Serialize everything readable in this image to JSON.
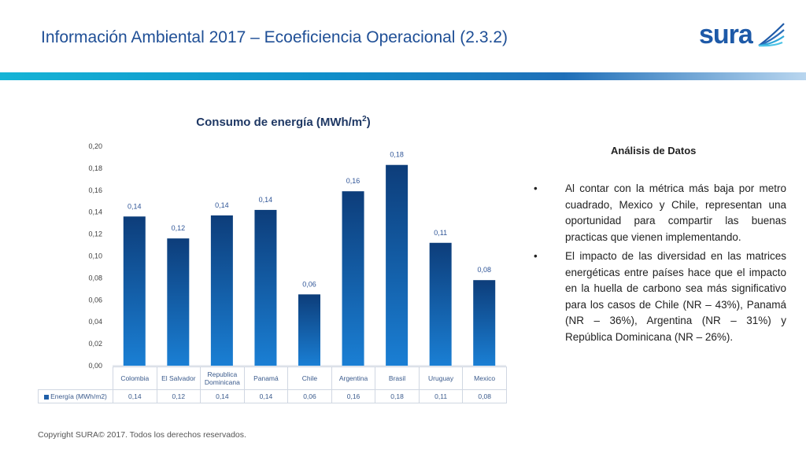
{
  "slide": {
    "title": "Información Ambiental 2017 – Ecoeficiencia Operacional (2.3.2)",
    "logo_text": "sura",
    "copyright": "Copyright SURA© 2017. Todos los derechos reservados."
  },
  "chart_data": {
    "type": "bar",
    "title": "Consumo de energía (MWh/m",
    "title_sup": "2",
    "title_end": ")",
    "categories": [
      "Colombia",
      "El Salvador",
      "Republica Dominicana",
      "Panamá",
      "Chile",
      "Argentina",
      "Brasil",
      "Uruguay",
      "Mexico"
    ],
    "values": [
      0.136,
      0.116,
      0.137,
      0.142,
      0.065,
      0.159,
      0.183,
      0.112,
      0.078
    ],
    "labels": [
      "0,14",
      "0,12",
      "0,14",
      "0,14",
      "0,06",
      "0,16",
      "0,18",
      "0,11",
      "0,08"
    ],
    "series_name": "Energía (MWh/m2)",
    "yticks": [
      "0,00",
      "0,02",
      "0,04",
      "0,06",
      "0,08",
      "0,10",
      "0,12",
      "0,14",
      "0,16",
      "0,18",
      "0,20"
    ],
    "ylim": [
      0,
      0.2
    ],
    "grid": false,
    "legend": "data-table",
    "colors": {
      "bar_top": "#0d3d7a",
      "bar_bottom": "#1a7fd4"
    }
  },
  "analysis": {
    "title": "Análisis de Datos",
    "bullet_symbol": "•",
    "bullets": [
      "Al contar con la métrica más baja por metro cuadrado, Mexico y Chile, representan una oportunidad para compartir las buenas practicas que vienen implementando.",
      "El impacto de las diversidad en las matrices energéticas entre países hace que el impacto en la huella de carbono sea más significativo para los casos de Chile (NR – 43%), Panamá (NR – 36%), Argentina (NR – 31%) y República Dominicana (NR – 26%)."
    ]
  }
}
